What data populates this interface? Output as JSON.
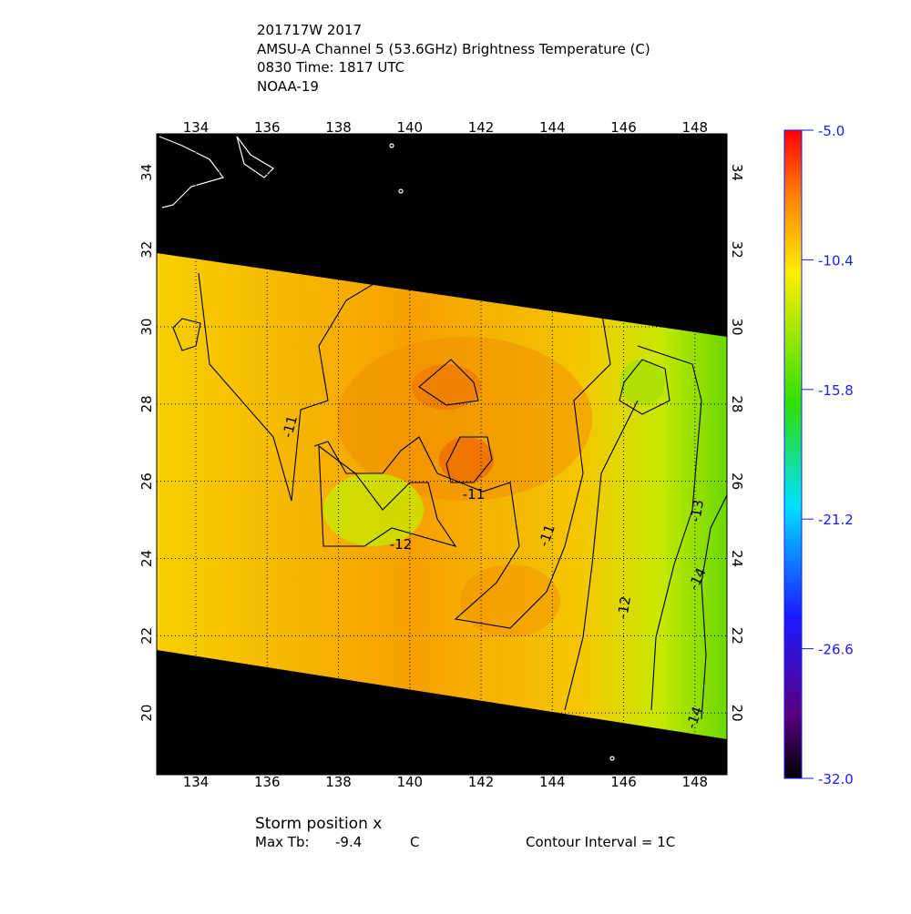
{
  "title_lines": [
    "201717W 2017",
    "AMSU-A Channel 5 (53.6GHz) Brightness Temperature (C)",
    "0830 Time: 1817 UTC",
    "NOAA-19"
  ],
  "map": {
    "lon_lim": [
      132.9,
      148.9
    ],
    "lat_lim": [
      18.4,
      35.0
    ],
    "lon_ticks": [
      134,
      136,
      138,
      140,
      142,
      144,
      146,
      148
    ],
    "lat_ticks": [
      20,
      22,
      24,
      26,
      28,
      30,
      32,
      34
    ],
    "contour_labels": [
      -11,
      -11,
      -12,
      -11,
      -12,
      -13,
      -14,
      -14
    ]
  },
  "colorbar": {
    "lim": [
      -32,
      -5
    ],
    "ticks": [
      {
        "value": -5,
        "label": "-5.0"
      },
      -10.4,
      -15.8,
      -21.2,
      -26.6,
      {
        "value": -32,
        "label": "-32.0"
      }
    ]
  },
  "footer": {
    "storm": "Storm position x",
    "max_tb_label": "Max Tb:",
    "max_tb": -9.4,
    "max_tb_unit": "C",
    "contour_interval": "Contour Interval = 1C"
  }
}
